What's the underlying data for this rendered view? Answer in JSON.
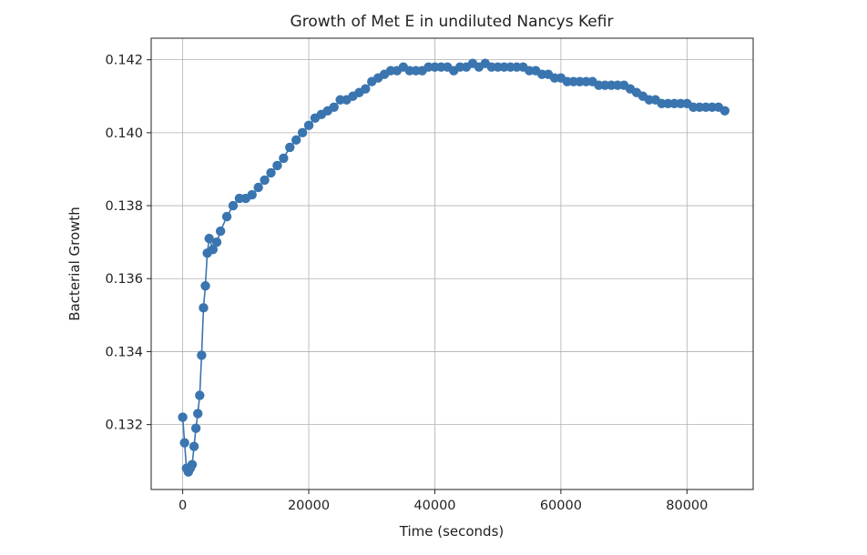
{
  "chart_data": {
    "type": "line",
    "title": "Growth of Met E in undiluted Nancys Kefir",
    "xlabel": "Time (seconds)",
    "ylabel": "Bacterial Growth",
    "xlim": [
      -5000,
      90500
    ],
    "ylim": [
      0.13022,
      0.14259
    ],
    "x_ticks": [
      0,
      20000,
      40000,
      60000,
      80000
    ],
    "x_tick_labels": [
      "0",
      "20000",
      "40000",
      "60000",
      "80000"
    ],
    "y_ticks": [
      0.132,
      0.134,
      0.136,
      0.138,
      0.14,
      0.142
    ],
    "y_tick_labels": [
      "0.132",
      "0.134",
      "0.136",
      "0.138",
      "0.140",
      "0.142"
    ],
    "grid": true,
    "marker": "circle",
    "color": "#3a75af",
    "series": [
      {
        "x": [
          0,
          300,
          600,
          900,
          1200,
          1500,
          1800,
          2100,
          2400,
          2700,
          3000,
          3300,
          3600,
          3900,
          4200,
          4800,
          5400,
          6000,
          7000,
          8000,
          9000,
          10000,
          11000,
          12000,
          13000,
          14000,
          15000,
          16000,
          17000,
          18000,
          19000,
          20000,
          21000,
          22000,
          23000,
          24000,
          25000,
          26000,
          27000,
          28000,
          29000,
          30000,
          31000,
          32000,
          33000,
          34000,
          35000,
          36000,
          37000,
          38000,
          39000,
          40000,
          41000,
          42000,
          43000,
          44000,
          45000,
          46000,
          47000,
          48000,
          49000,
          50000,
          51000,
          52000,
          53000,
          54000,
          55000,
          56000,
          57000,
          58000,
          59000,
          60000,
          61000,
          62000,
          63000,
          64000,
          65000,
          66000,
          67000,
          68000,
          69000,
          70000,
          71000,
          72000,
          73000,
          74000,
          75000,
          76000,
          77000,
          78000,
          79000,
          80000,
          81000,
          82000,
          83000,
          84000,
          85000,
          86000
        ],
        "values": [
          0.1322,
          0.1315,
          0.1308,
          0.1307,
          0.1308,
          0.1309,
          0.1314,
          0.1319,
          0.1323,
          0.1328,
          0.1339,
          0.1352,
          0.1358,
          0.1367,
          0.1371,
          0.1368,
          0.137,
          0.1373,
          0.1377,
          0.138,
          0.1382,
          0.1382,
          0.1383,
          0.1385,
          0.1387,
          0.1389,
          0.1391,
          0.1393,
          0.1396,
          0.1398,
          0.14,
          0.1402,
          0.1404,
          0.1405,
          0.1406,
          0.1407,
          0.1409,
          0.1409,
          0.141,
          0.1411,
          0.1412,
          0.1414,
          0.1415,
          0.1416,
          0.1417,
          0.1417,
          0.1418,
          0.1417,
          0.1417,
          0.1417,
          0.1418,
          0.1418,
          0.1418,
          0.1418,
          0.1417,
          0.1418,
          0.1418,
          0.1419,
          0.1418,
          0.1419,
          0.1418,
          0.1418,
          0.1418,
          0.1418,
          0.1418,
          0.1418,
          0.1417,
          0.1417,
          0.1416,
          0.1416,
          0.1415,
          0.1415,
          0.1414,
          0.1414,
          0.1414,
          0.1414,
          0.1414,
          0.1413,
          0.1413,
          0.1413,
          0.1413,
          0.1413,
          0.1412,
          0.1411,
          0.141,
          0.1409,
          0.1409,
          0.1408,
          0.1408,
          0.1408,
          0.1408,
          0.1408,
          0.1407,
          0.1407,
          0.1407,
          0.1407,
          0.1407,
          0.1406
        ]
      }
    ]
  }
}
